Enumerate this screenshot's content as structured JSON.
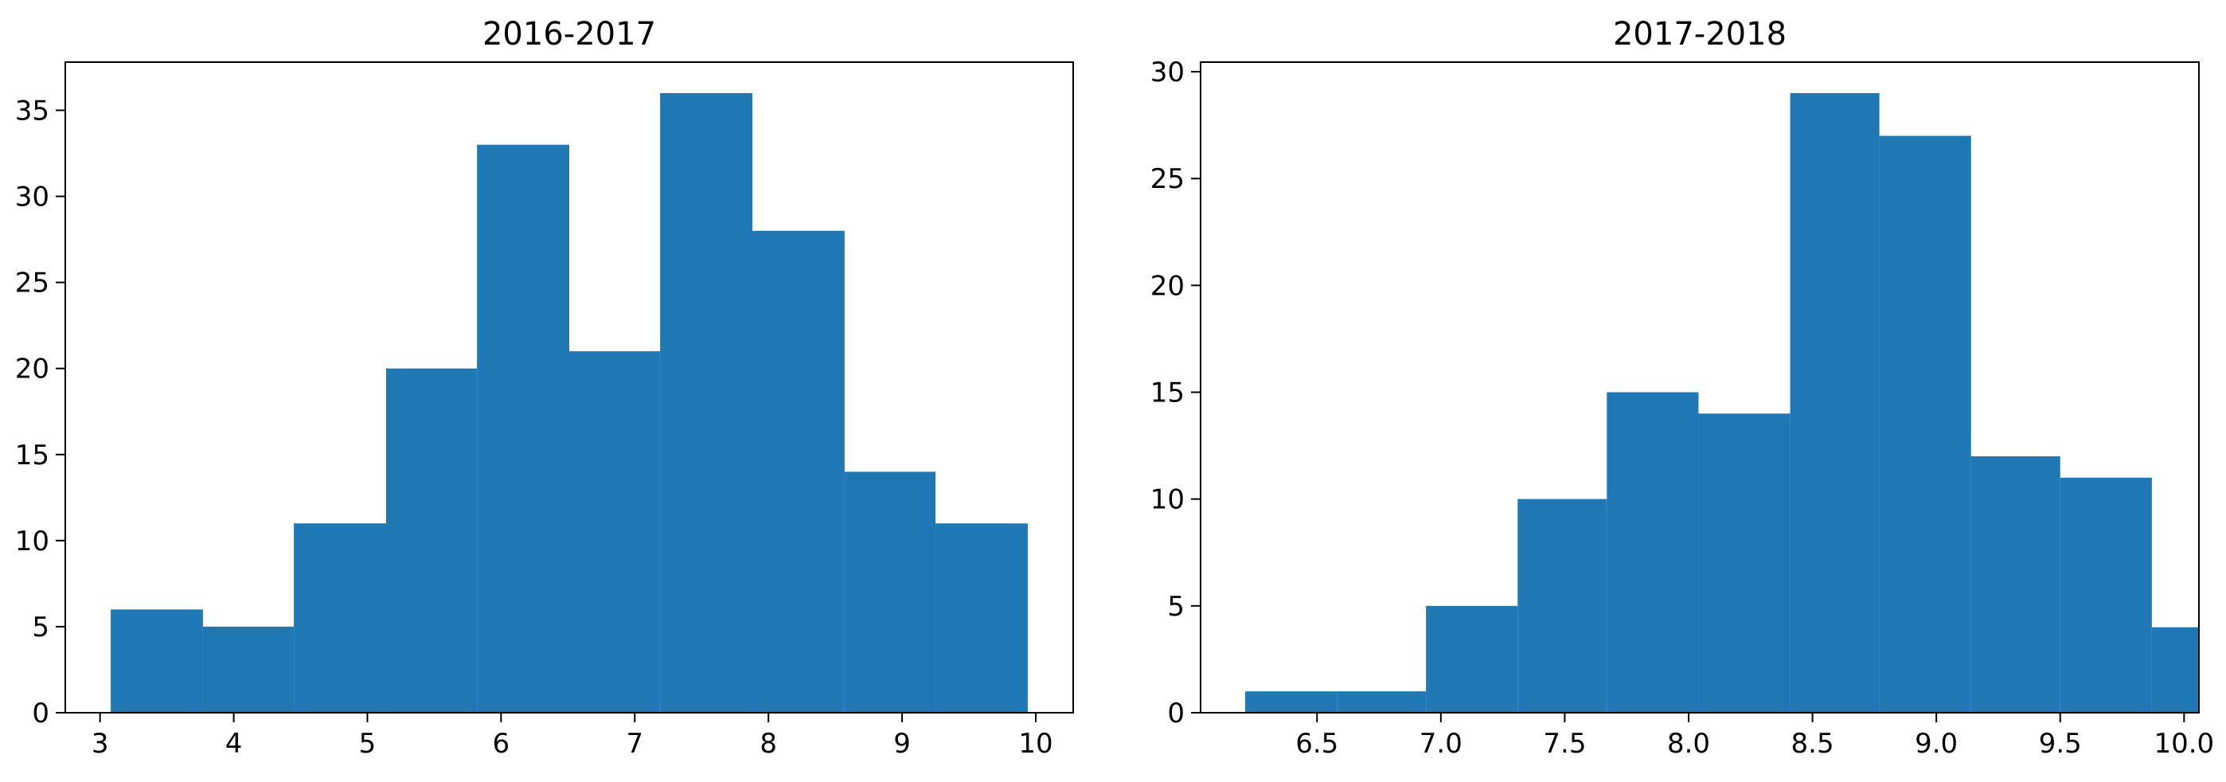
{
  "chart_data": [
    {
      "type": "bar",
      "title": "2016-2017",
      "xlabel": "",
      "ylabel": "",
      "bar_color": "#1f77b4",
      "bins": [
        {
          "x0": 3.08,
          "x1": 3.77,
          "count": 6
        },
        {
          "x0": 3.77,
          "x1": 4.45,
          "count": 5
        },
        {
          "x0": 4.45,
          "x1": 5.14,
          "count": 11
        },
        {
          "x0": 5.14,
          "x1": 5.82,
          "count": 20
        },
        {
          "x0": 5.82,
          "x1": 6.51,
          "count": 33
        },
        {
          "x0": 6.51,
          "x1": 7.19,
          "count": 21
        },
        {
          "x0": 7.19,
          "x1": 7.88,
          "count": 36
        },
        {
          "x0": 7.88,
          "x1": 8.57,
          "count": 28
        },
        {
          "x0": 8.57,
          "x1": 9.25,
          "count": 14
        },
        {
          "x0": 9.25,
          "x1": 9.94,
          "count": 11
        }
      ],
      "xlim": [
        2.74,
        10.28
      ],
      "ylim": [
        0,
        37.8
      ],
      "xticks": [
        3,
        4,
        5,
        6,
        7,
        8,
        9,
        10
      ],
      "xtick_labels": [
        "3",
        "4",
        "5",
        "6",
        "7",
        "8",
        "9",
        "10"
      ],
      "yticks": [
        0,
        5,
        10,
        15,
        20,
        25,
        30,
        35
      ],
      "ytick_labels": [
        "0",
        "5",
        "10",
        "15",
        "20",
        "25",
        "30",
        "35"
      ],
      "grid": false,
      "legend": "none"
    },
    {
      "type": "bar",
      "title": "2017-2018",
      "xlabel": "",
      "ylabel": "",
      "bar_color": "#1f77b4",
      "bins": [
        {
          "x0": 6.21,
          "x1": 6.58,
          "count": 1
        },
        {
          "x0": 6.58,
          "x1": 6.94,
          "count": 1
        },
        {
          "x0": 6.94,
          "x1": 7.31,
          "count": 5
        },
        {
          "x0": 7.31,
          "x1": 7.67,
          "count": 10
        },
        {
          "x0": 7.67,
          "x1": 8.04,
          "count": 15
        },
        {
          "x0": 8.04,
          "x1": 8.41,
          "count": 14
        },
        {
          "x0": 8.41,
          "x1": 8.77,
          "count": 29
        },
        {
          "x0": 8.77,
          "x1": 9.14,
          "count": 27
        },
        {
          "x0": 9.14,
          "x1": 9.5,
          "count": 12
        },
        {
          "x0": 9.5,
          "x1": 9.87,
          "count": 11
        },
        {
          "x0": 9.87,
          "x1": 10.24,
          "count": 4
        }
      ],
      "xlim": [
        6.03,
        10.06
      ],
      "ylim": [
        0,
        30.45
      ],
      "xticks": [
        6.5,
        7.0,
        7.5,
        8.0,
        8.5,
        9.0,
        9.5,
        10.0
      ],
      "xtick_labels": [
        "6.5",
        "7.0",
        "7.5",
        "8.0",
        "8.5",
        "9.0",
        "9.5",
        "10.0"
      ],
      "yticks": [
        0,
        5,
        10,
        15,
        20,
        25,
        30
      ],
      "ytick_labels": [
        "0",
        "5",
        "10",
        "15",
        "20",
        "25",
        "30"
      ],
      "grid": false,
      "legend": "none"
    }
  ]
}
